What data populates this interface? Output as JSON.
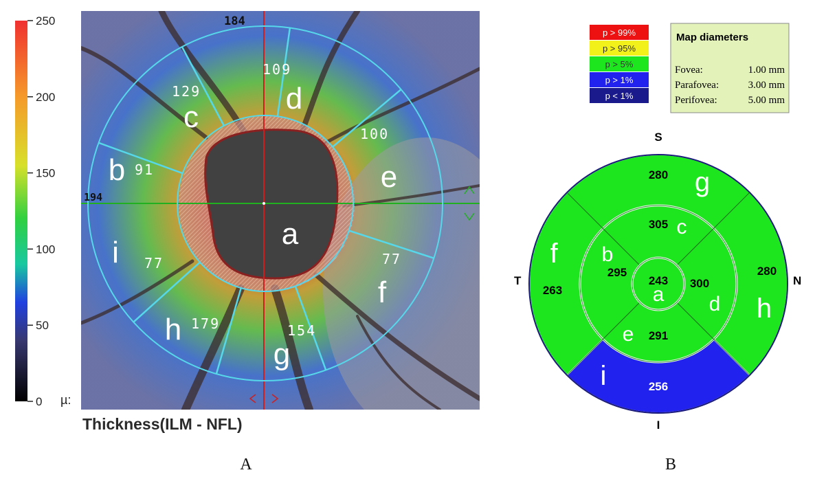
{
  "panel_a": {
    "caption": "A",
    "title": "Thickness(ILM - NFL)",
    "scale": {
      "ticks": [
        "250",
        "200",
        "150",
        "100",
        "50",
        "0"
      ],
      "unit": "µ:"
    },
    "scan_labels": {
      "top": "184",
      "left": "194"
    },
    "regions": [
      {
        "letter": "a",
        "value": ""
      },
      {
        "letter": "b",
        "value": "91"
      },
      {
        "letter": "c",
        "value": "129"
      },
      {
        "letter": "d",
        "value": "109"
      },
      {
        "letter": "e",
        "value": "100"
      },
      {
        "letter": "f",
        "value": "77"
      },
      {
        "letter": "g",
        "value": "154"
      },
      {
        "letter": "h",
        "value": "179"
      },
      {
        "letter": "i",
        "value": "77"
      }
    ]
  },
  "panel_b": {
    "caption": "B",
    "legend": [
      {
        "label": "p > 99%",
        "color": "#ee1111"
      },
      {
        "label": "p > 95%",
        "color": "#f2f21a"
      },
      {
        "label": "p > 5%",
        "color": "#1ee61e"
      },
      {
        "label": "p > 1%",
        "color": "#2222ee"
      },
      {
        "label": "p < 1%",
        "color": "#1a1a8c"
      }
    ],
    "diameters": {
      "title": "Map diameters",
      "rows": [
        {
          "label": "Fovea:",
          "value": "1.00 mm"
        },
        {
          "label": "Parafovea:",
          "value": "3.00 mm"
        },
        {
          "label": "Perifovea:",
          "value": "5.00 mm"
        }
      ]
    },
    "compass": {
      "top": "S",
      "bottom": "I",
      "left": "T",
      "right": "N"
    },
    "sectors": [
      {
        "letter": "a",
        "value": "243",
        "color": "#1ee61e"
      },
      {
        "letter": "b",
        "value": "295",
        "color": "#1ee61e"
      },
      {
        "letter": "c",
        "value": "305",
        "color": "#1ee61e"
      },
      {
        "letter": "d",
        "value": "300",
        "color": "#1ee61e"
      },
      {
        "letter": "e",
        "value": "291",
        "color": "#1ee61e"
      },
      {
        "letter": "f",
        "value": "263",
        "color": "#1ee61e"
      },
      {
        "letter": "g",
        "value": "280",
        "color": "#1ee61e"
      },
      {
        "letter": "h",
        "value": "280",
        "color": "#1ee61e"
      },
      {
        "letter": "i",
        "value": "256",
        "color": "#2222ee"
      }
    ]
  }
}
